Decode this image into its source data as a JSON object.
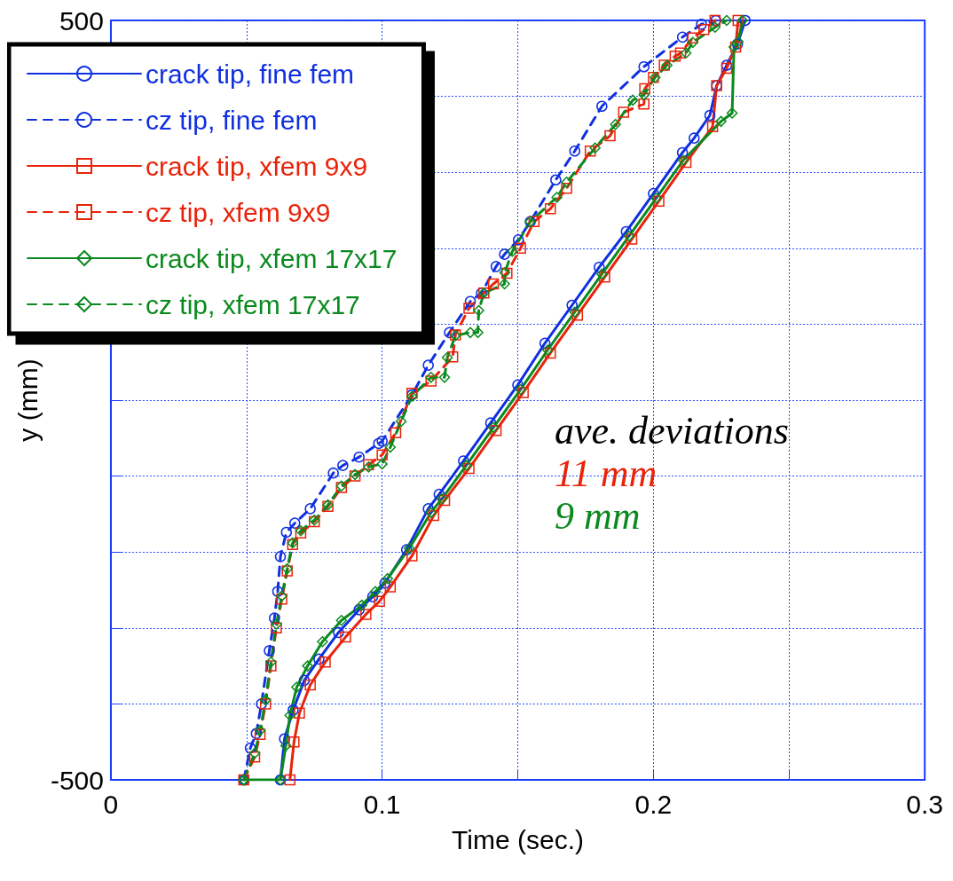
{
  "chart_data": {
    "type": "line",
    "xlabel": "Time (sec.)",
    "ylabel": "y (mm)",
    "xlim": [
      0,
      0.3
    ],
    "ylim": [
      -500,
      500
    ],
    "xticks": [
      0,
      {
        "value": 0.05,
        "label": null
      },
      0.1,
      {
        "value": 0.15,
        "label": null
      },
      0.2,
      {
        "value": 0.25,
        "label": null
      },
      0.3
    ],
    "yticks": [
      -500,
      {
        "value": -400,
        "label": null
      },
      {
        "value": -300,
        "label": null
      },
      {
        "value": -200,
        "label": null
      },
      {
        "value": -100,
        "label": null
      },
      {
        "value": 0,
        "label": null
      },
      {
        "value": 100,
        "label": null
      },
      {
        "value": 200,
        "label": null
      },
      {
        "value": 300,
        "label": null
      },
      {
        "value": 400,
        "label": null
      },
      500
    ],
    "grid": true,
    "legend": "top left",
    "annotations": [
      "ave. deviations",
      "11 mm",
      "9 mm"
    ],
    "series": [
      {
        "name": "crack tip, fine fem",
        "color": "#1030e0",
        "line_style": "solid",
        "marker": "circle",
        "x": [
          0.0625,
          0.064,
          0.0672,
          0.0713,
          0.0767,
          0.0839,
          0.0915,
          0.0965,
          0.101,
          0.109,
          0.117,
          0.121,
          0.13,
          0.14,
          0.15,
          0.16,
          0.17,
          0.18,
          0.19,
          0.2,
          0.2107,
          0.215,
          0.2208,
          0.2233,
          0.227,
          0.231,
          0.2338
        ],
        "values": [
          -500,
          -446,
          -408,
          -369,
          -341,
          -306,
          -276,
          -259,
          -241,
          -197,
          -143,
          -124,
          -80,
          -30,
          20,
          75,
          125,
          175,
          222,
          272,
          326,
          345,
          375,
          414,
          441,
          469,
          500
        ]
      },
      {
        "name": "cz tip, fine fem",
        "color": "#1030e0",
        "line_style": "dashed",
        "marker": "circle",
        "x": [
          0.049,
          0.0514,
          0.0536,
          0.0555,
          0.0584,
          0.0603,
          0.0615,
          0.0625,
          0.0647,
          0.0678,
          0.0735,
          0.082,
          0.0855,
          0.0915,
          0.0987,
          0.1,
          0.111,
          0.117,
          0.1248,
          0.1325,
          0.1366,
          0.142,
          0.1451,
          0.1502,
          0.1546,
          0.164,
          0.171,
          0.181,
          0.1965,
          0.2107,
          0.2177,
          0.223
        ],
        "values": [
          -500,
          -458,
          -439,
          -400,
          -330,
          -287,
          -252,
          -206,
          -174,
          -162,
          -143,
          -96,
          -86,
          -75,
          -57,
          -54,
          7,
          46,
          89,
          130,
          141,
          176,
          192,
          211,
          235,
          290,
          328,
          387,
          439,
          478,
          495,
          500
        ]
      },
      {
        "name": "crack tip, xfem 9x9",
        "color": "#e8230a",
        "line_style": "solid",
        "marker": "square",
        "x": [
          0.066,
          0.0675,
          0.0695,
          0.0735,
          0.079,
          0.0865,
          0.094,
          0.099,
          0.103,
          0.111,
          0.119,
          0.123,
          0.132,
          0.142,
          0.152,
          0.162,
          0.172,
          0.182,
          0.192,
          0.202,
          0.212,
          0.2218,
          0.2233,
          0.227,
          0.2303,
          0.2312
        ],
        "values": [
          -500,
          -450,
          -412,
          -375,
          -345,
          -312,
          -282,
          -265,
          -246,
          -205,
          -152,
          -132,
          -90,
          -40,
          10,
          62,
          112,
          162,
          212,
          262,
          313,
          360,
          414,
          437,
          465,
          500
        ]
      },
      {
        "name": "cz tip, xfem 9x9",
        "color": "#e8230a",
        "line_style": "dashed",
        "marker": "square",
        "x": [
          0.049,
          0.053,
          0.055,
          0.057,
          0.059,
          0.061,
          0.063,
          0.065,
          0.067,
          0.07,
          0.075,
          0.08,
          0.085,
          0.09,
          0.095,
          0.1,
          0.105,
          0.111,
          0.118,
          0.126,
          0.127,
          0.132,
          0.1375,
          0.141,
          0.146,
          0.151,
          0.156,
          0.162,
          0.168,
          0.1767,
          0.184,
          0.189,
          0.1965,
          0.1968,
          0.2,
          0.204,
          0.208,
          0.21,
          0.2145,
          0.2186,
          0.2227
        ],
        "values": [
          -500,
          -470,
          -440,
          -400,
          -350,
          -300,
          -262,
          -225,
          -190,
          -175,
          -160,
          -140,
          -115,
          -100,
          -85,
          -72,
          -43,
          9,
          25,
          57,
          86,
          121,
          141,
          153,
          167,
          200,
          235,
          252,
          279,
          328,
          348,
          379,
          390,
          410,
          425,
          441,
          453,
          457,
          477,
          488,
          500
        ]
      },
      {
        "name": "crack tip, xfem 17x17",
        "color": "#0a8a1e",
        "line_style": "solid",
        "marker": "diamond",
        "x": [
          0.049,
          0.0625,
          0.0645,
          0.066,
          0.0685,
          0.0725,
          0.078,
          0.085,
          0.0925,
          0.0975,
          0.102,
          0.11,
          0.118,
          0.122,
          0.131,
          0.141,
          0.151,
          0.161,
          0.171,
          0.181,
          0.191,
          0.201,
          0.211,
          0.2249,
          0.229,
          0.2297,
          0.2312,
          0.2328
        ],
        "values": [
          -500,
          -500,
          -455,
          -415,
          -378,
          -350,
          -318,
          -290,
          -270,
          -252,
          -235,
          -195,
          -148,
          -130,
          -86,
          -36,
          14,
          66,
          116,
          166,
          216,
          266,
          316,
          367,
          378,
          465,
          472,
          500
        ]
      },
      {
        "name": "cz tip, xfem 17x17",
        "color": "#0a8a1e",
        "line_style": "dashed",
        "marker": "diamond",
        "x": [
          0.049,
          0.053,
          0.055,
          0.057,
          0.059,
          0.061,
          0.063,
          0.065,
          0.067,
          0.07,
          0.075,
          0.08,
          0.085,
          0.09,
          0.095,
          0.1,
          0.103,
          0.107,
          0.111,
          0.118,
          0.123,
          0.124,
          0.127,
          0.1325,
          0.1353,
          0.1356,
          0.1375,
          0.1451,
          0.1452,
          0.148,
          0.1546,
          0.1644,
          0.168,
          0.1785,
          0.186,
          0.1924,
          0.1965,
          0.2006,
          0.205,
          0.212,
          0.2145,
          0.2227,
          0.227
        ],
        "values": [
          -500,
          -465,
          -435,
          -395,
          -345,
          -295,
          -258,
          -222,
          -188,
          -172,
          -158,
          -138,
          -113,
          -98,
          -88,
          -84,
          -62,
          -28,
          5,
          30,
          30,
          56,
          85,
          89,
          89,
          118,
          141,
          153,
          168,
          196,
          235,
          267,
          287,
          332,
          363,
          395,
          402,
          425,
          441,
          457,
          471,
          491,
          500
        ]
      }
    ]
  }
}
